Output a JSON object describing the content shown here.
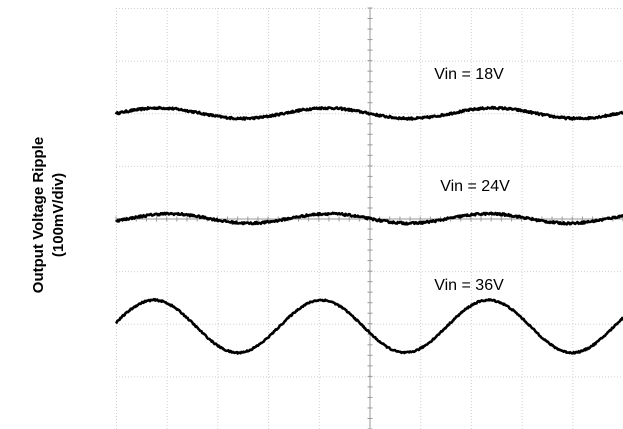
{
  "chart_data": {
    "type": "line",
    "ylabel": "Output Voltage Ripple",
    "ylabel_unit": "(100mV/div)",
    "grid": true,
    "x_divisions": 10,
    "y_divisions": 8,
    "series": [
      {
        "name": "Vin = 18V",
        "offset_div": 6.0,
        "amplitude_div": 0.1,
        "period_div": 3.3,
        "phase_div": 0.85,
        "noise": 0.04
      },
      {
        "name": "Vin = 24V",
        "offset_div": 4.0,
        "amplitude_div": 0.09,
        "period_div": 3.15,
        "phase_div": 1.05,
        "noise": 0.04
      },
      {
        "name": "Vin = 36V",
        "offset_div": 1.95,
        "amplitude_div": 0.5,
        "period_div": 3.3,
        "phase_div": 0.75,
        "noise": 0.03
      }
    ]
  }
}
